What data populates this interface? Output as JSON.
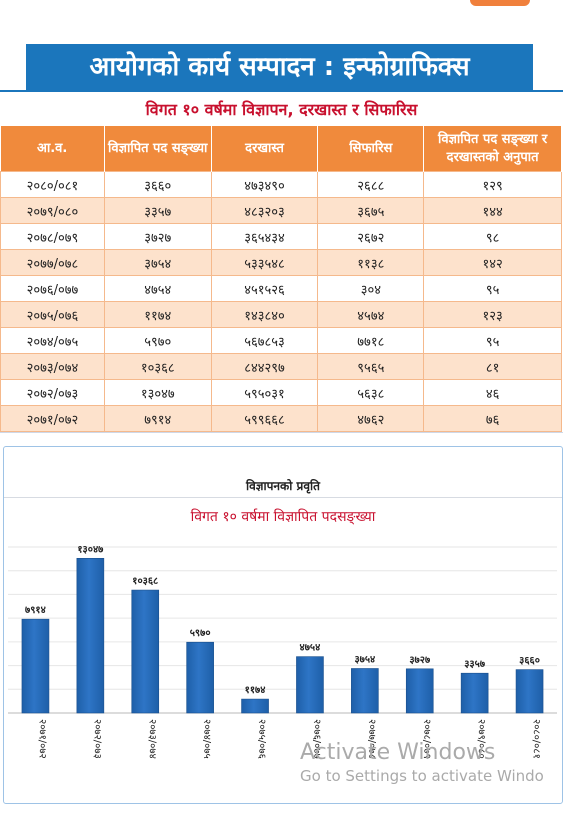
{
  "banner": {
    "title": "आयोगको कार्य सम्पादन : इन्फोग्राफिक्स"
  },
  "table": {
    "subtitle": "विगत १० वर्षमा विज्ञापन, दरखास्त र सिफारिस",
    "headers": [
      "आ.व.",
      "विज्ञापित पद सङ्ख्या",
      "दरखास्त",
      "सिफारिस",
      "विज्ञापित पद सङ्ख्या र दरखास्तको अनुपात"
    ],
    "rows": [
      [
        "२०८०/०८१",
        "३६६०",
        "४७३४९०",
        "२६८८",
        "१२९"
      ],
      [
        "२०७९/०८०",
        "३३५७",
        "४८३२०३",
        "३६७५",
        "१४४"
      ],
      [
        "२०७८/०७९",
        "३७२७",
        "३६५४३४",
        "२६७२",
        "९८"
      ],
      [
        "२०७७/०७८",
        "३७५४",
        "५३३५४८",
        "११३८",
        "१४२"
      ],
      [
        "२०७६/०७७",
        "४७५४",
        "४५१५२६",
        "३०४",
        "९५"
      ],
      [
        "२०७५/०७६",
        "११७४",
        "१४३८४०",
        "४५७४",
        "१२३"
      ],
      [
        "२०७४/०७५",
        "५९७०",
        "५६७८५३",
        "७७१८",
        "९५"
      ],
      [
        "२०७३/०७४",
        "१०३६८",
        "८४४२९७",
        "९५६५",
        "८१"
      ],
      [
        "२०७२/०७३",
        "१३०४७",
        "५९५०३१",
        "५६३८",
        "४६"
      ],
      [
        "२०७१/०७२",
        "७९१४",
        "५९९६६८",
        "४७६२",
        "७६"
      ]
    ]
  },
  "chart_data": {
    "type": "bar",
    "title": "विज्ञापनको प्रवृति",
    "subtitle": "विगत १० वर्षमा विज्ञापित पदसङ्ख्या",
    "categories": [
      "२०७१/०७२",
      "२०७२/०७३",
      "२०७३/०७४",
      "२०७४/०७५",
      "२०७५/०७६",
      "२०७६/०७७",
      "२०७७/०७८",
      "२०७८/०७९",
      "२०७९/०८०",
      "२०८०/०८१"
    ],
    "values": [
      7914,
      13047,
      10368,
      5970,
      1174,
      4754,
      3754,
      3727,
      3357,
      3660
    ],
    "value_labels": [
      "७९१४",
      "१३०४७",
      "१०३६८",
      "५९७०",
      "११७४",
      "४७५४",
      "३७५४",
      "३७२७",
      "३३५७",
      "३६६०"
    ],
    "ylim": [
      0,
      14000
    ],
    "grid": true,
    "bar_color": "#2e75c6"
  },
  "watermark": {
    "line1": "Activate Windows",
    "line2": "Go to Settings to activate Windo"
  },
  "colors": {
    "banner": "#1b76bc",
    "header": "#f08a3c",
    "alt_row": "#fde2cc",
    "subtitle": "#c8102e"
  }
}
